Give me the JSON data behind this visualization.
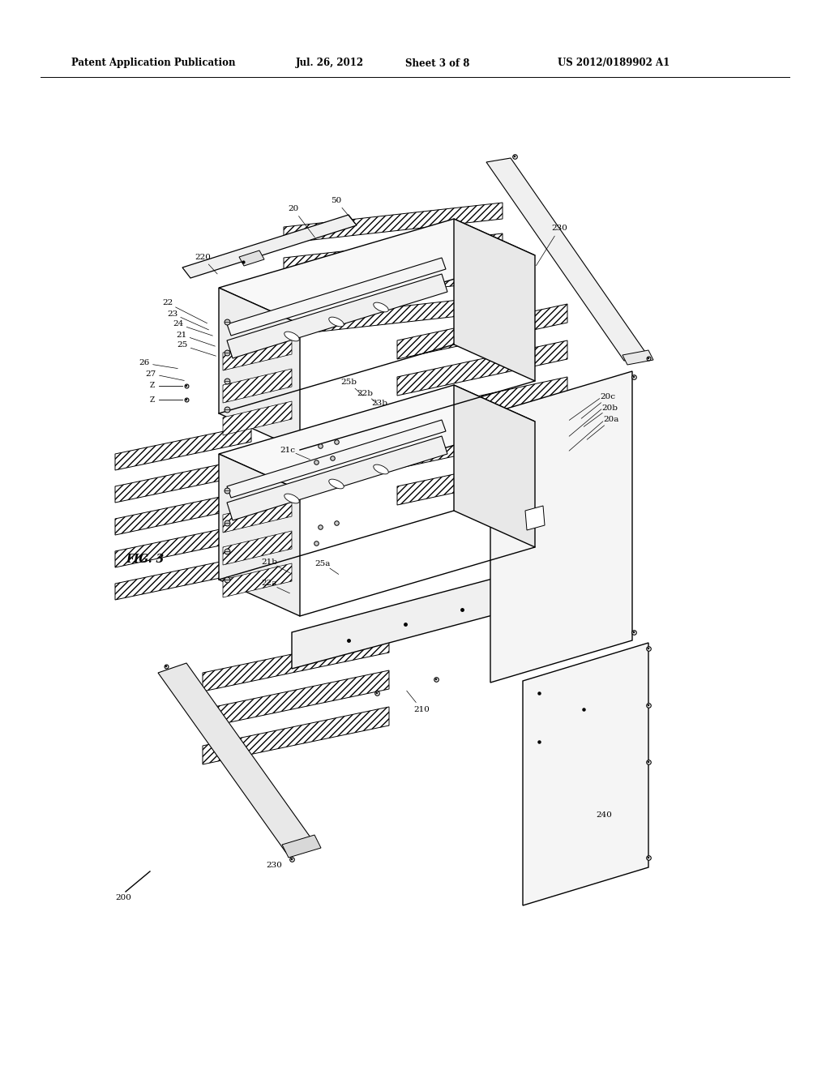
{
  "bg_color": "#ffffff",
  "header_text": "Patent Application Publication",
  "header_date": "Jul. 26, 2012",
  "header_sheet": "Sheet 3 of 8",
  "header_patent": "US 2012/0189902 A1",
  "fig_label": "FIG. 3"
}
